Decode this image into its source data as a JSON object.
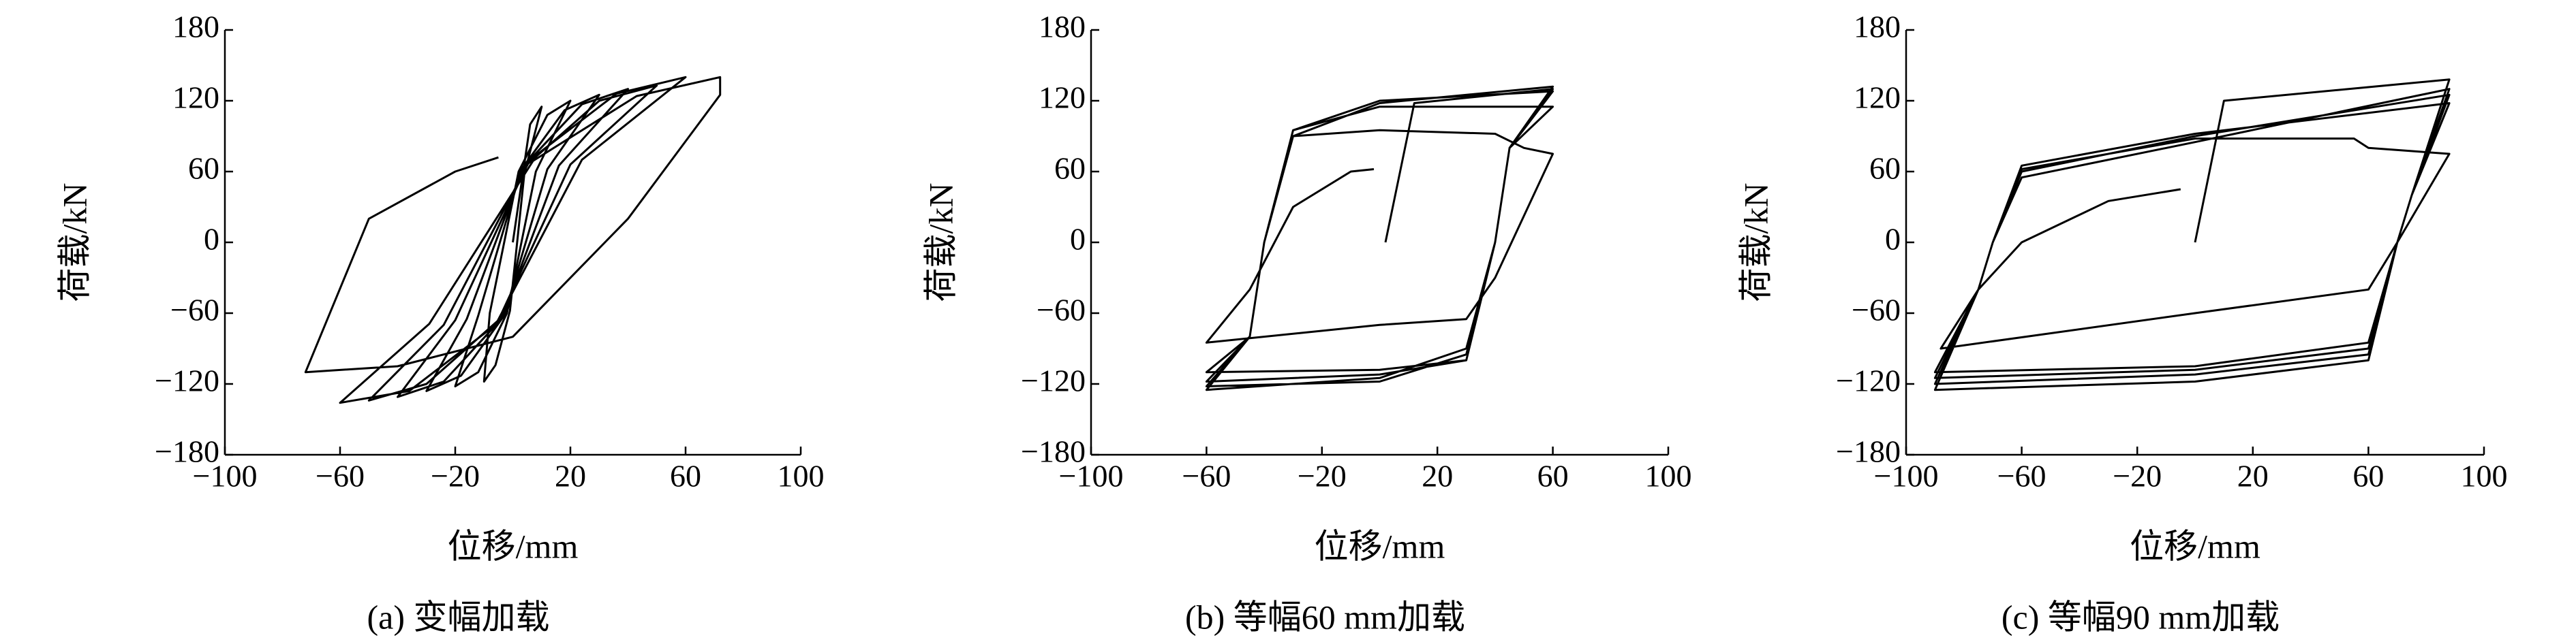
{
  "chart_data": [
    {
      "type": "line",
      "title": "(a) 变幅加载",
      "xlabel": "位移/mm",
      "ylabel": "荷载/kN",
      "color": "#000000",
      "xlim": [
        -100,
        100
      ],
      "ylim": [
        -180,
        180
      ],
      "xticks": [
        {
          "value": -100,
          "label": "−100"
        },
        {
          "value": -60,
          "label": "−60"
        },
        {
          "value": -20,
          "label": "−20"
        },
        20,
        60,
        100
      ],
      "yticks": [
        {
          "value": -180,
          "label": "−180"
        },
        {
          "value": -120,
          "label": "−120"
        },
        {
          "value": -60,
          "label": "−60"
        },
        0,
        60,
        120,
        180
      ],
      "x": [
        0,
        6,
        10,
        4,
        -1,
        -6,
        -10,
        -8,
        2,
        12,
        20,
        8,
        -2,
        -12,
        -20,
        -12,
        3,
        18,
        30,
        12,
        -3,
        -18,
        -30,
        -16,
        4,
        24,
        40,
        16,
        -4,
        -24,
        -40,
        -20,
        5,
        30,
        50,
        20,
        -5,
        -30,
        -50,
        -24,
        6,
        36,
        60,
        24,
        -6,
        -36,
        -60,
        -29,
        7,
        43,
        72,
        72,
        40,
        0,
        -40,
        -72,
        -50,
        -20,
        -5
      ],
      "values": [
        0,
        100,
        115,
        58,
        -58,
        -104,
        -118,
        -60,
        60,
        108,
        120,
        60,
        -60,
        -110,
        -122,
        -62,
        62,
        112,
        125,
        62,
        -62,
        -113,
        -126,
        -65,
        65,
        117,
        130,
        65,
        -65,
        -118,
        -131,
        -66,
        66,
        120,
        133,
        66,
        -66,
        -120,
        -134,
        -70,
        70,
        126,
        140,
        70,
        -70,
        -126,
        -136,
        -69,
        69,
        124,
        140,
        125,
        20,
        -80,
        -105,
        -110,
        20,
        60,
        72
      ]
    },
    {
      "type": "line",
      "title": "(b) 等幅60 mm加载",
      "xlabel": "位移/mm",
      "ylabel": "荷载/kN",
      "color": "#000000",
      "xlim": [
        -100,
        100
      ],
      "ylim": [
        -180,
        180
      ],
      "xticks": [
        {
          "value": -100,
          "label": "−100"
        },
        {
          "value": -60,
          "label": "−60"
        },
        {
          "value": -20,
          "label": "−20"
        },
        20,
        60,
        100
      ],
      "yticks": [
        {
          "value": -180,
          "label": "−180"
        },
        {
          "value": -120,
          "label": "−120"
        },
        {
          "value": -60,
          "label": "−60"
        },
        0,
        60,
        120,
        180
      ],
      "x": [
        2,
        12,
        60,
        45,
        40,
        30,
        0,
        -60,
        -45,
        -40,
        -30,
        0,
        60,
        45,
        40,
        30,
        0,
        -60,
        -45,
        -40,
        -30,
        0,
        60,
        45,
        40,
        30,
        0,
        -60,
        -45,
        -40,
        -30,
        0,
        60,
        45,
        40,
        30,
        0,
        -60,
        -45,
        -40,
        -30,
        0,
        40,
        50,
        60,
        40,
        30,
        0,
        -60,
        -45,
        -30,
        -10,
        -2
      ],
      "values": [
        0,
        118,
        130,
        80,
        0,
        -90,
        -115,
        -125,
        -80,
        0,
        90,
        118,
        132,
        80,
        0,
        -95,
        -118,
        -122,
        -80,
        0,
        95,
        120,
        128,
        80,
        0,
        -100,
        -112,
        -118,
        -80,
        0,
        95,
        115,
        115,
        80,
        0,
        -100,
        -108,
        -110,
        -80,
        0,
        90,
        95,
        92,
        80,
        75,
        -30,
        -65,
        -70,
        -85,
        -40,
        30,
        60,
        62
      ]
    },
    {
      "type": "line",
      "title": "(c) 等幅90 mm加载",
      "xlabel": "位移/mm",
      "ylabel": "荷载/kN",
      "color": "#000000",
      "xlim": [
        -100,
        100
      ],
      "ylim": [
        -180,
        180
      ],
      "xticks": [
        {
          "value": -100,
          "label": "−100"
        },
        {
          "value": -60,
          "label": "−60"
        },
        {
          "value": -20,
          "label": "−20"
        },
        20,
        60,
        100
      ],
      "yticks": [
        {
          "value": -180,
          "label": "−180"
        },
        {
          "value": -120,
          "label": "−120"
        },
        {
          "value": -60,
          "label": "−60"
        },
        0,
        60,
        120,
        180
      ],
      "x": [
        0,
        10,
        88,
        75,
        70,
        60,
        0,
        -90,
        -75,
        -70,
        -60,
        0,
        88,
        75,
        70,
        60,
        0,
        -90,
        -75,
        -70,
        -60,
        0,
        88,
        75,
        70,
        60,
        0,
        -90,
        -75,
        -70,
        -60,
        0,
        88,
        75,
        70,
        60,
        0,
        -90,
        -75,
        -70,
        -60,
        0,
        55,
        60,
        88,
        70,
        60,
        0,
        -88,
        -75,
        -60,
        -30,
        -5
      ],
      "values": [
        0,
        120,
        138,
        40,
        0,
        -85,
        -105,
        -110,
        -40,
        0,
        55,
        85,
        130,
        40,
        0,
        -90,
        -108,
        -115,
        -40,
        0,
        60,
        90,
        125,
        40,
        0,
        -95,
        -112,
        -120,
        -40,
        0,
        65,
        92,
        118,
        40,
        0,
        -100,
        -118,
        -125,
        -40,
        0,
        62,
        88,
        88,
        80,
        75,
        0,
        -40,
        -60,
        -90,
        -40,
        0,
        35,
        45
      ]
    }
  ]
}
